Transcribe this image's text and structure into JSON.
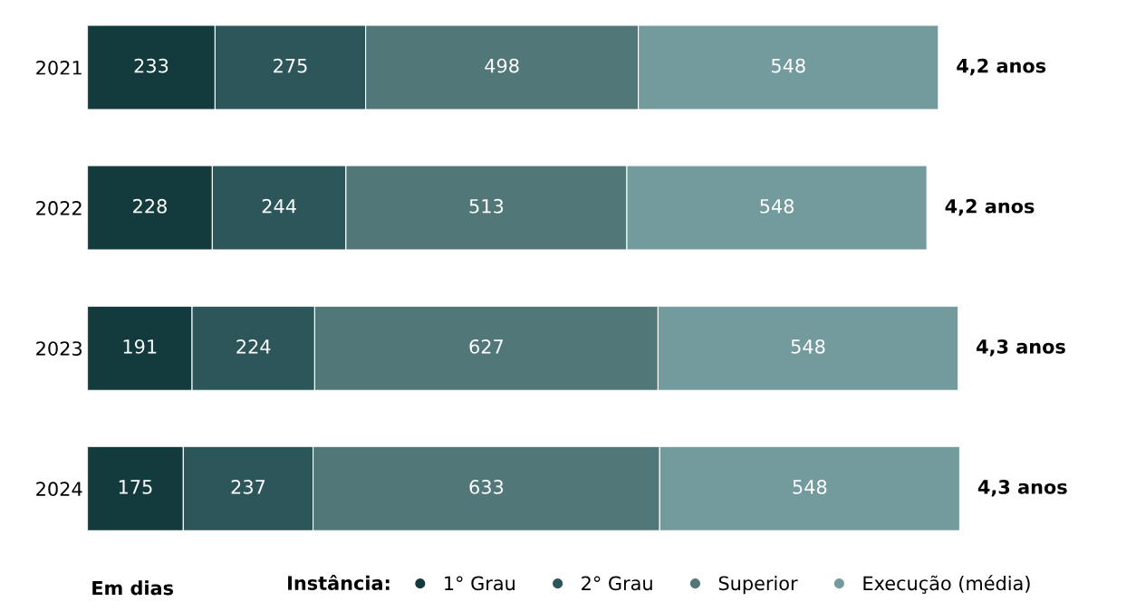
{
  "chart_data": {
    "type": "bar",
    "orientation": "horizontal",
    "stacked": true,
    "categories": [
      "2021",
      "2022",
      "2023",
      "2024"
    ],
    "series": [
      {
        "name": "1° Grau",
        "color": "#133a3c",
        "values": [
          233,
          228,
          191,
          175
        ]
      },
      {
        "name": "2° Grau",
        "color": "#2c5659",
        "values": [
          275,
          244,
          224,
          237
        ]
      },
      {
        "name": "Superior",
        "color": "#527779",
        "values": [
          498,
          513,
          627,
          633
        ]
      },
      {
        "name": "Execução (média)",
        "color": "#739b9d",
        "values": [
          548,
          548,
          548,
          548
        ]
      }
    ],
    "data_labels": true,
    "legend": "bottom",
    "legend_title": "Instância:",
    "annotations": [
      "Em dias",
      {
        "text": "4,2 anos",
        "x": 1554,
        "y": "2021"
      },
      {
        "text": "4,2 anos",
        "x": 1533,
        "y": "2022"
      },
      {
        "text": "4,3 anos",
        "x": 1590,
        "y": "2023"
      },
      {
        "text": "4,3 anos",
        "x": 1593,
        "y": "2024"
      }
    ],
    "tick_labels": "y",
    "grid": false
  }
}
